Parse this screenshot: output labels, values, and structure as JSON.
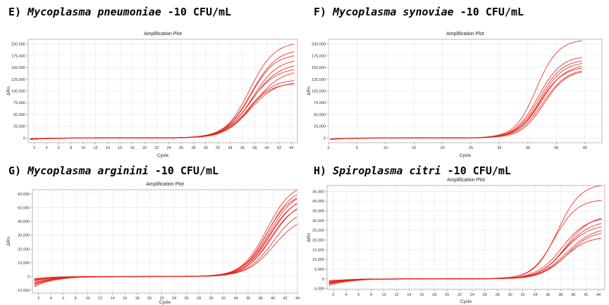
{
  "panels": [
    {
      "prefix": "E)",
      "species": "Mycoplasma pneumoniae",
      "suffix": "-10 CFU/mL"
    },
    {
      "prefix": "F)",
      "species": "Mycoplasma synoviae",
      "suffix": "-10 CFU/mL"
    },
    {
      "prefix": "G)",
      "species": "Mycoplasma arginini",
      "suffix": "-10 CFU/mL"
    },
    {
      "prefix": "H)",
      "species": "Spiroplasma citri",
      "suffix": "-10 CFU/mL"
    }
  ],
  "chart_data": [
    {
      "type": "line",
      "title": "Amplification Plot",
      "xlabel": "Cycle",
      "ylabel": "ΔRn",
      "xlim": [
        1,
        45
      ],
      "ylim": [
        -10000,
        210000
      ],
      "xticks": [
        2,
        4,
        6,
        8,
        10,
        12,
        14,
        16,
        18,
        20,
        22,
        24,
        26,
        28,
        30,
        32,
        34,
        36,
        38,
        40,
        42,
        44
      ],
      "yticks": [
        0,
        25000,
        50000,
        75000,
        100000,
        125000,
        150000,
        175000,
        200000
      ],
      "ytick_labels": [
        "0",
        "25,000",
        "50,000",
        "75,000",
        "100,000",
        "125,000",
        "150,000",
        "175,000",
        "200,000"
      ],
      "grid": true,
      "line_color": "#e8201a",
      "series": [
        {
          "plateau": 205000,
          "midpoint": 37.2,
          "slope": 2.0,
          "start": -3500
        },
        {
          "plateau": 190000,
          "midpoint": 37.4,
          "slope": 2.1,
          "start": -3000
        },
        {
          "plateau": 180000,
          "midpoint": 37.3,
          "slope": 2.0,
          "start": -2500
        },
        {
          "plateau": 170000,
          "midpoint": 37.6,
          "slope": 2.1,
          "start": -2000
        },
        {
          "plateau": 160000,
          "midpoint": 37.5,
          "slope": 2.2,
          "start": -3000
        },
        {
          "plateau": 150000,
          "midpoint": 37.2,
          "slope": 2.1,
          "start": -2500
        },
        {
          "plateau": 145000,
          "midpoint": 37.8,
          "slope": 2.2,
          "start": -2000
        },
        {
          "plateau": 125000,
          "midpoint": 37.0,
          "slope": 2.0,
          "start": -1500
        },
        {
          "plateau": 120000,
          "midpoint": 37.2,
          "slope": 2.1,
          "start": -2500
        },
        {
          "plateau": 118000,
          "midpoint": 36.8,
          "slope": 2.0,
          "start": -2000
        }
      ]
    },
    {
      "type": "line",
      "title": "Amplification Plot",
      "xlabel": "Cycle",
      "ylabel": "ΔRn",
      "xlim": [
        0,
        48
      ],
      "ylim": [
        -10000,
        210000
      ],
      "xticks": [
        0,
        5,
        10,
        15,
        20,
        25,
        30,
        35,
        40,
        45
      ],
      "yticks": [
        0,
        25000,
        50000,
        75000,
        100000,
        125000,
        150000,
        175000,
        200000
      ],
      "ytick_labels": [
        "0",
        "25,000",
        "50,000",
        "75,000",
        "100,000",
        "125,000",
        "150,000",
        "175,000",
        "200,000"
      ],
      "grid": true,
      "line_color": "#e8201a",
      "series": [
        {
          "plateau": 210000,
          "midpoint": 36.5,
          "slope": 1.9,
          "start": -3000
        },
        {
          "plateau": 175000,
          "midpoint": 36.8,
          "slope": 2.0,
          "start": -2500
        },
        {
          "plateau": 168000,
          "midpoint": 37.0,
          "slope": 2.0,
          "start": -2000
        },
        {
          "plateau": 163000,
          "midpoint": 37.2,
          "slope": 2.0,
          "start": -2500
        },
        {
          "plateau": 158000,
          "midpoint": 37.4,
          "slope": 2.1,
          "start": -3000
        },
        {
          "plateau": 152000,
          "midpoint": 37.1,
          "slope": 2.0,
          "start": -2000
        },
        {
          "plateau": 148000,
          "midpoint": 37.6,
          "slope": 2.1,
          "start": -2500
        },
        {
          "plateau": 145000,
          "midpoint": 37.8,
          "slope": 2.0,
          "start": -2000
        }
      ]
    },
    {
      "type": "line",
      "title": "Amplification Plot",
      "xlabel": "Cycle",
      "ylabel": "ΔRn",
      "xlim": [
        1,
        44
      ],
      "ylim": [
        -12000,
        63000
      ],
      "xticks": [
        2,
        4,
        6,
        8,
        10,
        12,
        14,
        16,
        18,
        20,
        22,
        24,
        26,
        28,
        30,
        32,
        34,
        36,
        38,
        40,
        42,
        44
      ],
      "yticks": [
        -10000,
        0,
        10000,
        20000,
        30000,
        40000,
        50000,
        60000
      ],
      "ytick_labels": [
        "-10,000",
        "0",
        "10,000",
        "20,000",
        "30,000",
        "40,000",
        "50,000",
        "60,000"
      ],
      "grid": true,
      "line_color": "#e8201a",
      "series": [
        {
          "plateau": 68000,
          "midpoint": 39.0,
          "slope": 2.0,
          "start": -7500
        },
        {
          "plateau": 65000,
          "midpoint": 39.2,
          "slope": 2.0,
          "start": -6500
        },
        {
          "plateau": 63000,
          "midpoint": 39.4,
          "slope": 2.1,
          "start": -5500
        },
        {
          "plateau": 62000,
          "midpoint": 39.0,
          "slope": 2.0,
          "start": -4500
        },
        {
          "plateau": 60000,
          "midpoint": 39.6,
          "slope": 2.1,
          "start": -5000
        },
        {
          "plateau": 58000,
          "midpoint": 39.3,
          "slope": 2.0,
          "start": -3500
        },
        {
          "plateau": 56000,
          "midpoint": 39.8,
          "slope": 2.1,
          "start": -3000
        },
        {
          "plateau": 54000,
          "midpoint": 39.5,
          "slope": 2.0,
          "start": -2500
        },
        {
          "plateau": 50000,
          "midpoint": 40.0,
          "slope": 2.1,
          "start": -2000
        },
        {
          "plateau": 45000,
          "midpoint": 40.2,
          "slope": 2.2,
          "start": -1500
        }
      ]
    },
    {
      "type": "line",
      "title": "Amplification Plot",
      "xlabel": "Cycle",
      "ylabel": "ΔRn",
      "xlim": [
        1,
        45
      ],
      "ylim": [
        -5500,
        48000
      ],
      "xticks": [
        2,
        4,
        6,
        8,
        10,
        12,
        14,
        16,
        18,
        20,
        22,
        24,
        26,
        28,
        30,
        32,
        34,
        36,
        38,
        40,
        42,
        44
      ],
      "yticks": [
        -5000,
        0,
        5000,
        10000,
        15000,
        20000,
        25000,
        30000,
        35000,
        40000,
        45000
      ],
      "ytick_labels": [
        "-5,000",
        "0",
        "5,000",
        "10,000",
        "15,000",
        "20,000",
        "25,000",
        "30,000",
        "35,000",
        "40,000",
        "45,000"
      ],
      "grid": true,
      "line_color": "#e8201a",
      "series": [
        {
          "plateau": 49000,
          "midpoint": 37.5,
          "slope": 1.8,
          "start": -3500
        },
        {
          "plateau": 41000,
          "midpoint": 37.0,
          "slope": 1.8,
          "start": -2800
        },
        {
          "plateau": 33000,
          "midpoint": 38.8,
          "slope": 2.0,
          "start": -2500
        },
        {
          "plateau": 32000,
          "midpoint": 38.2,
          "slope": 2.0,
          "start": -2000
        },
        {
          "plateau": 30000,
          "midpoint": 38.6,
          "slope": 2.0,
          "start": -1500
        },
        {
          "plateau": 28000,
          "midpoint": 38.4,
          "slope": 2.0,
          "start": -2200
        },
        {
          "plateau": 26500,
          "midpoint": 38.9,
          "slope": 2.1,
          "start": -1800
        },
        {
          "plateau": 25000,
          "midpoint": 39.0,
          "slope": 2.0,
          "start": -1200
        },
        {
          "plateau": 22000,
          "midpoint": 38.5,
          "slope": 2.0,
          "start": -1000
        }
      ]
    }
  ]
}
